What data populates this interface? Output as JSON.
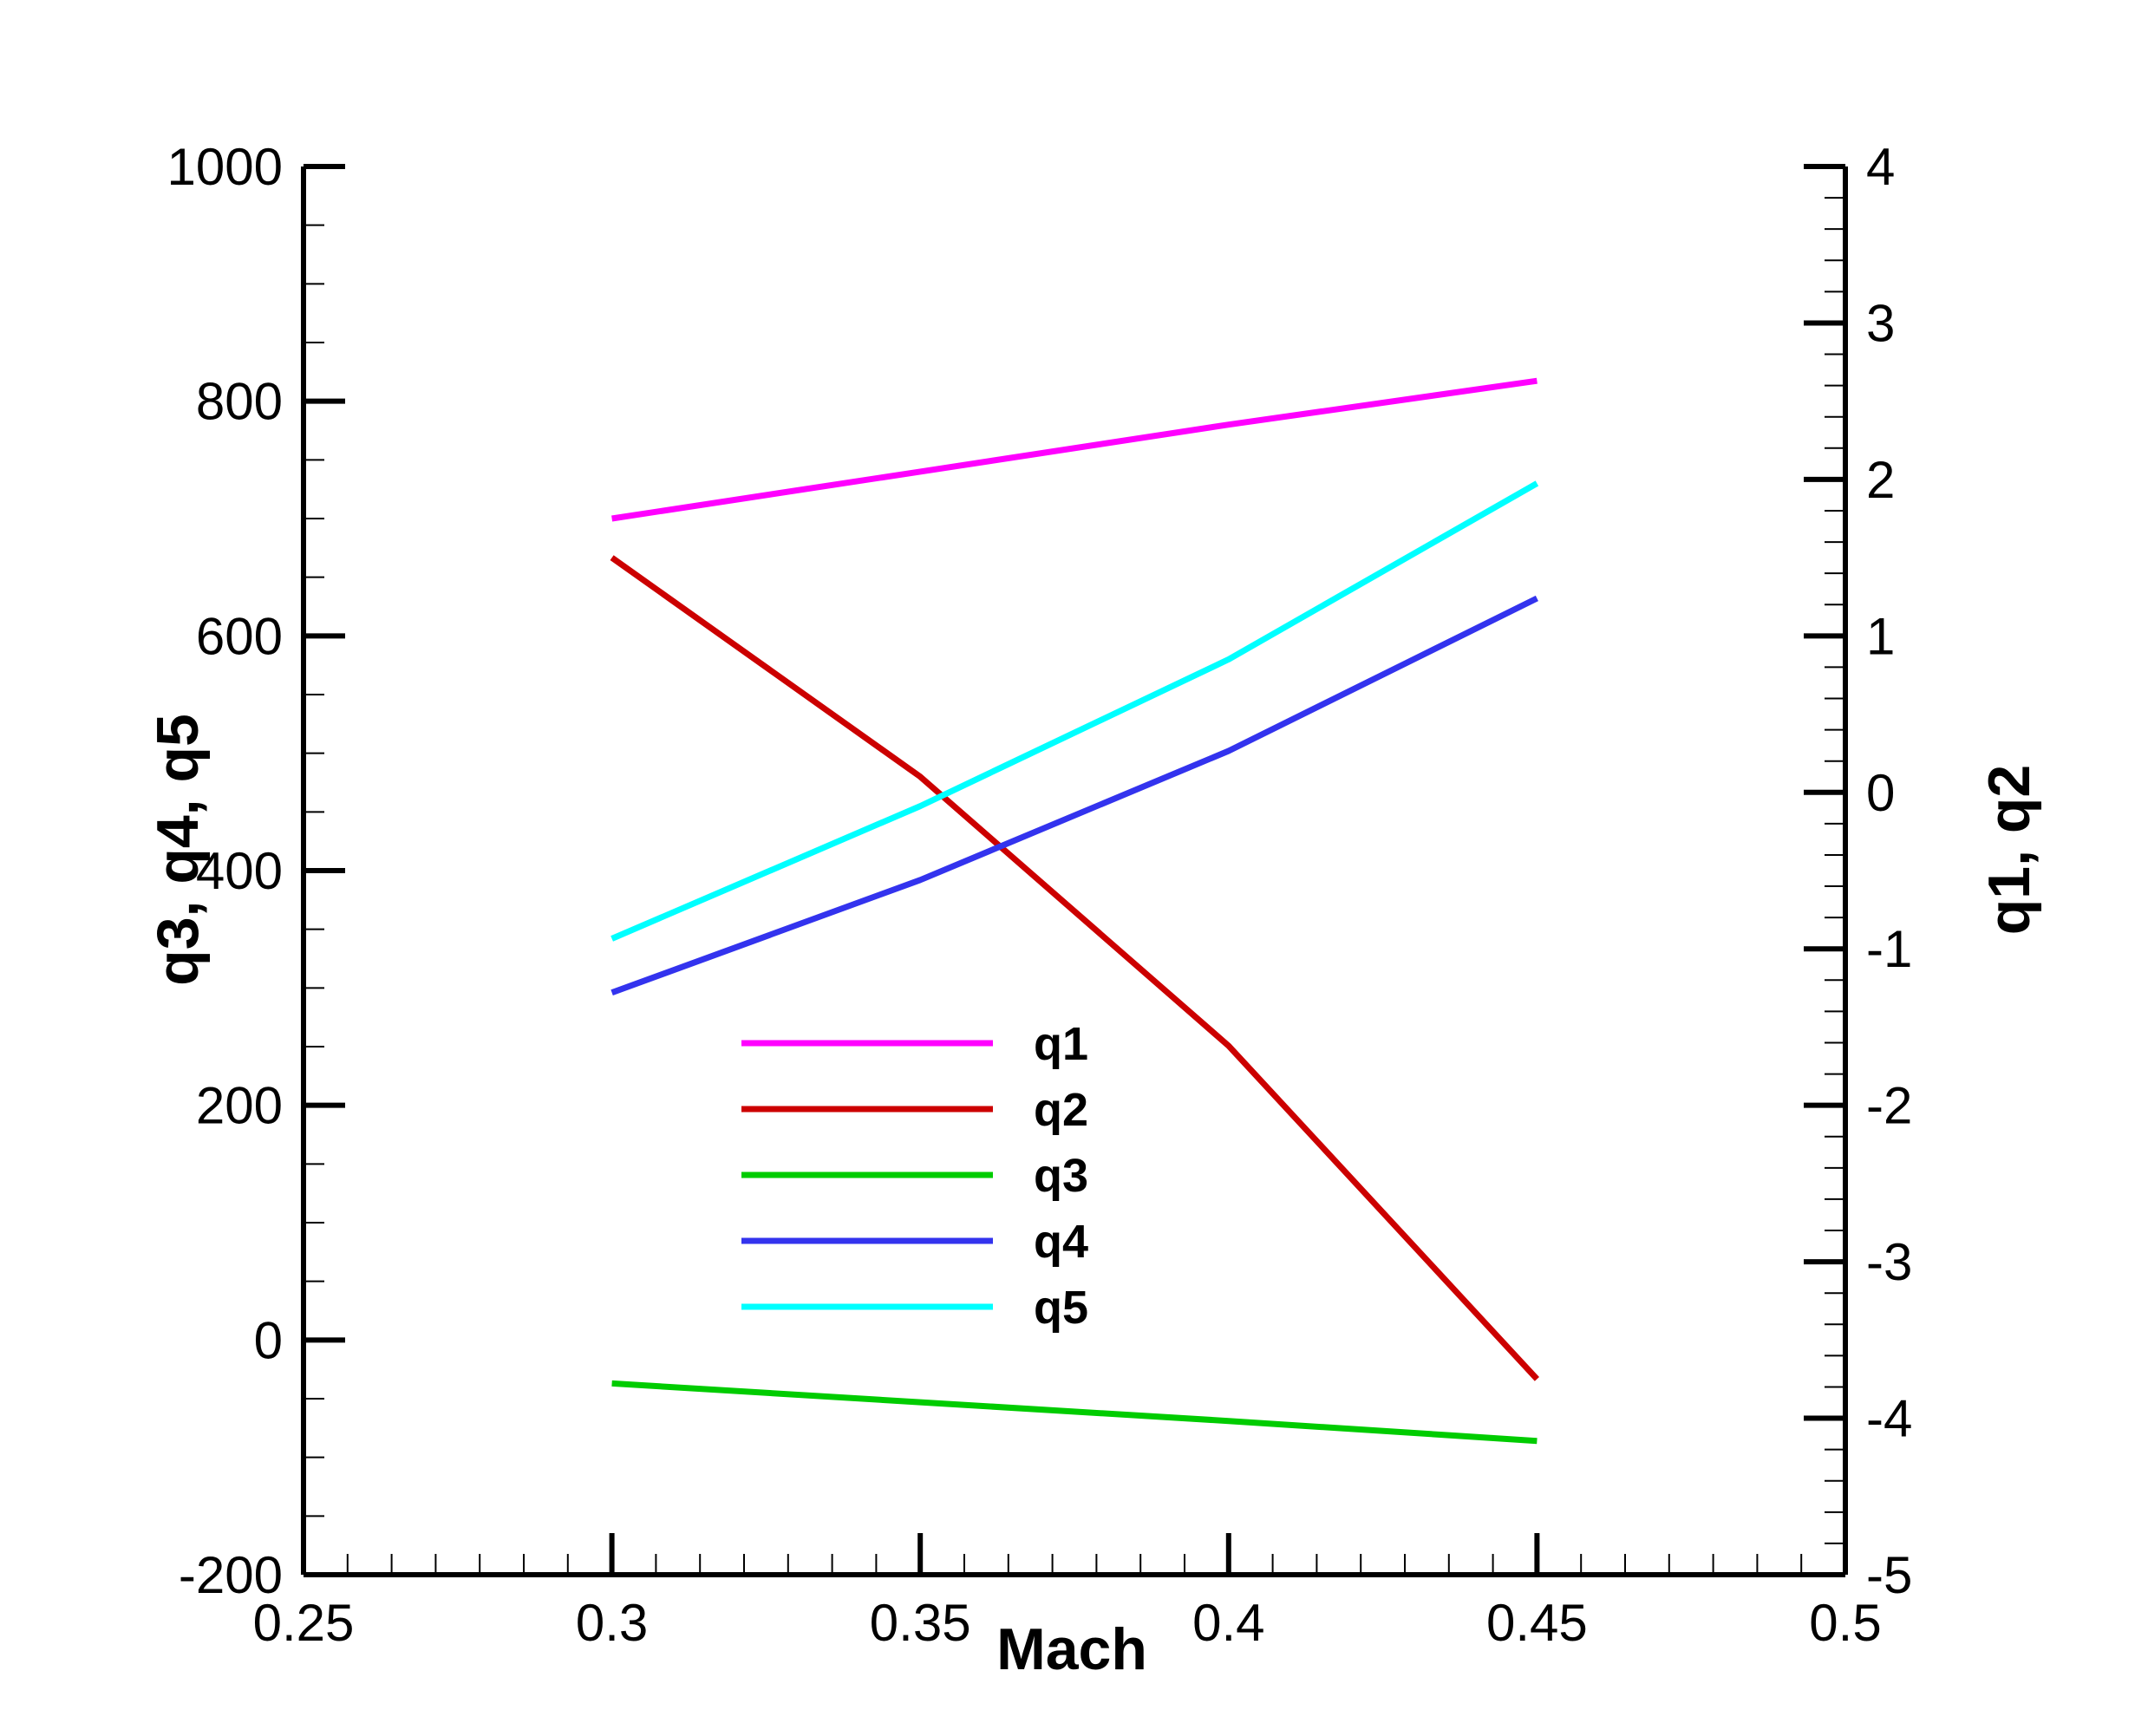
{
  "chart_data": {
    "type": "line",
    "xlabel": "Mach",
    "ylabel_left": "q3, q4, q5",
    "ylabel_right": "q1, q2",
    "xlim": [
      0.25,
      0.5
    ],
    "ylim_left": [
      -200,
      1000
    ],
    "ylim_right": [
      -5,
      4
    ],
    "x_ticks": [
      "0.25",
      "0.3",
      "0.35",
      "0.4",
      "0.45",
      "0.5"
    ],
    "y_left_ticks": [
      "-200",
      "0",
      "200",
      "400",
      "600",
      "800",
      "1000"
    ],
    "y_right_ticks": [
      "-5",
      "-4",
      "-3",
      "-2",
      "-1",
      "0",
      "1",
      "2",
      "3",
      "4"
    ],
    "grid": false,
    "legend_placement": "center",
    "x": [
      0.3,
      0.35,
      0.4,
      0.45
    ],
    "series": [
      {
        "name": "q1",
        "axis": "right",
        "color": "#ff00ff",
        "values": [
          1.75,
          2.05,
          2.35,
          2.63
        ]
      },
      {
        "name": "q2",
        "axis": "right",
        "color": "#cc0000",
        "values": [
          1.5,
          0.1,
          -1.62,
          -3.75
        ]
      },
      {
        "name": "q3",
        "axis": "left",
        "color": "#00cc00",
        "values": [
          -37,
          -53,
          -69,
          -86
        ]
      },
      {
        "name": "q4",
        "axis": "left",
        "color": "#3333ee",
        "values": [
          296,
          392,
          502,
          632
        ]
      },
      {
        "name": "q5",
        "axis": "left",
        "color": "#00ffff",
        "values": [
          342,
          455,
          580,
          730
        ]
      }
    ]
  }
}
